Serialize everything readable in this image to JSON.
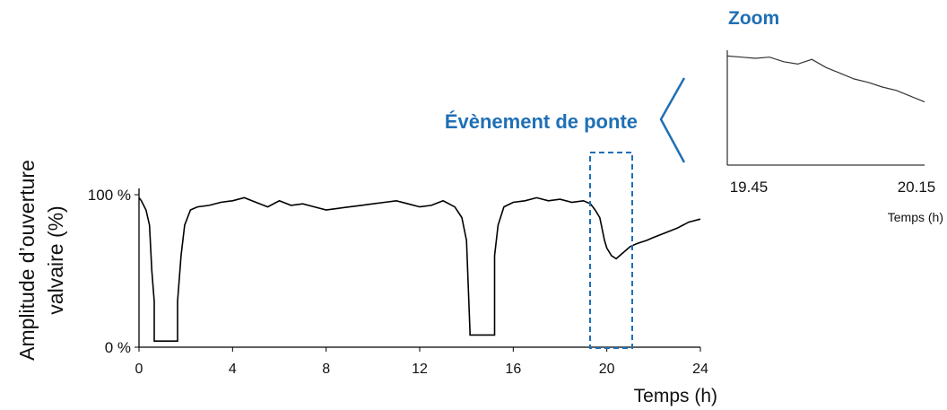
{
  "chart_data": [
    {
      "type": "line",
      "title": "",
      "xlabel": "Temps (h)",
      "ylabel_lines": [
        "Amplitude d’ouverture",
        "valvaire (%)"
      ],
      "x_ticks": [
        0,
        4,
        8,
        12,
        16,
        20,
        24
      ],
      "y_ticks": [
        {
          "value": 0,
          "label": "0 %"
        },
        {
          "value": 100,
          "label": "100 %"
        }
      ],
      "xlim": [
        0,
        24
      ],
      "ylim": [
        0,
        100
      ],
      "grid": false,
      "line_color": "#000000",
      "series": [
        {
          "x": [
            0.0,
            0.1,
            0.3,
            0.45,
            0.55,
            0.65,
            0.65,
            1.65,
            1.65,
            1.8,
            1.95,
            2.2,
            2.5,
            3.0,
            3.5,
            4.0,
            4.5,
            5.0,
            5.5,
            6.0,
            6.5,
            7.0,
            7.5,
            8.0,
            8.5,
            9.0,
            9.5,
            10.0,
            10.5,
            11.0,
            11.5,
            12.0,
            12.5,
            13.0,
            13.5,
            13.8,
            14.0,
            14.15,
            14.15,
            15.2,
            15.2,
            15.35,
            15.6,
            16.0,
            16.5,
            17.0,
            17.5,
            18.0,
            18.5,
            19.0,
            19.3,
            19.5,
            19.7,
            19.9,
            20.0,
            20.2,
            20.4,
            20.7,
            21.0,
            21.3,
            21.7,
            22.0,
            22.5,
            23.0,
            23.5,
            24.0
          ],
          "y": [
            98,
            96,
            90,
            80,
            50,
            30,
            4,
            4,
            30,
            60,
            80,
            90,
            92,
            93,
            95,
            96,
            98,
            95,
            92,
            96,
            93,
            94,
            92,
            90,
            91,
            92,
            93,
            94,
            95,
            96,
            94,
            92,
            93,
            96,
            92,
            85,
            70,
            10,
            8,
            8,
            60,
            80,
            92,
            95,
            96,
            98,
            96,
            97,
            95,
            96,
            94,
            90,
            85,
            70,
            65,
            60,
            58,
            62,
            66,
            68,
            70,
            72,
            75,
            78,
            82,
            84
          ]
        }
      ],
      "annotation": {
        "label": "Évènement de ponte",
        "x_range": [
          19.4,
          21.1
        ],
        "color": "#1f6fb5"
      }
    },
    {
      "type": "line",
      "title": "Zoom",
      "xlabel": "Temps (h)",
      "x_tick_labels": [
        "19.45",
        "20.15"
      ],
      "xlim": [
        19.45,
        20.15
      ],
      "ylim": [
        0,
        100
      ],
      "grid": false,
      "title_color": "#1f6fb5",
      "line_color": "#333333",
      "series": [
        {
          "x": [
            19.45,
            19.5,
            19.55,
            19.6,
            19.65,
            19.7,
            19.75,
            19.8,
            19.85,
            19.9,
            19.95,
            20.0,
            20.05,
            20.1,
            20.15
          ],
          "y": [
            95,
            94,
            93,
            94,
            90,
            88,
            92,
            85,
            80,
            75,
            72,
            68,
            65,
            60,
            55
          ]
        }
      ]
    }
  ]
}
